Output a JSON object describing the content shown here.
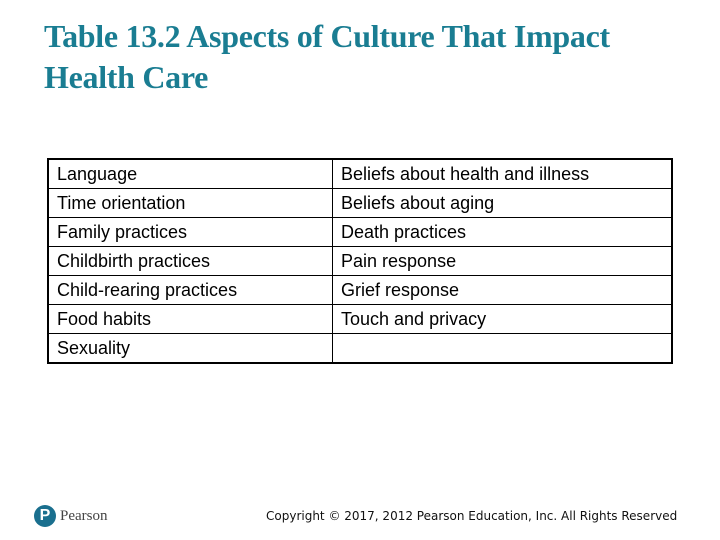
{
  "slide": {
    "title": "Table 13.2 Aspects of Culture That Impact Health Care"
  },
  "table": {
    "rows": [
      [
        "Language",
        "Beliefs about health and illness"
      ],
      [
        "Time orientation",
        "Beliefs about aging"
      ],
      [
        "Family practices",
        "Death practices"
      ],
      [
        "Childbirth practices",
        "Pain response"
      ],
      [
        "Child-rearing practices",
        "Grief response"
      ],
      [
        "Food habits",
        "Touch and privacy"
      ],
      [
        "Sexuality",
        ""
      ]
    ]
  },
  "footer": {
    "logo_icon": "P",
    "logo_text": "Pearson",
    "copyright": "Copyright © 2017, 2012 Pearson Education, Inc. All Rights Reserved"
  },
  "colors": {
    "title": "#1a7d92",
    "logo": "#1a6f8e"
  }
}
